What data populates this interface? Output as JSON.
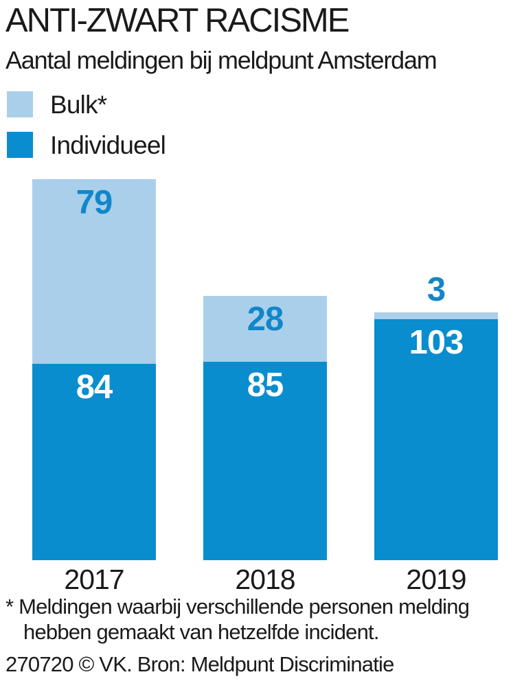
{
  "header": {
    "title": "ANTI-ZWART RACISME",
    "subtitle": "Aantal meldingen bij meldpunt Amsterdam"
  },
  "footnote": "* Meldingen waarbij verschillende personen melding hebben gemaakt van hetzelfde incident.",
  "source": "270720 © VK. Bron: Meldpunt Discriminatie",
  "colors": {
    "bulk": "#a9cfeb",
    "individueel": "#0a8dce",
    "value_label_on_light": "#1286c8",
    "value_label_on_dark": "#ffffff",
    "text": "#1a1a1a",
    "background": "#ffffff"
  },
  "chart_data": {
    "type": "bar",
    "subtype": "stacked-vertical",
    "title": "ANTI-ZWART RACISME",
    "subtitle": "Aantal meldingen bij meldpunt Amsterdam",
    "xlabel": "",
    "ylabel": "",
    "grid": false,
    "legend_position": "top-left",
    "categories": [
      "2017",
      "2018",
      "2019"
    ],
    "series": [
      {
        "name": "Bulk*",
        "key": "bulk",
        "stack_position": "top",
        "color": "#a9cfeb",
        "label_color": "#1286c8",
        "values": [
          79,
          28,
          3
        ]
      },
      {
        "name": "Individueel",
        "key": "individueel",
        "stack_position": "bottom",
        "color": "#0a8dce",
        "label_color": "#ffffff",
        "values": [
          84,
          85,
          103
        ]
      }
    ],
    "totals": [
      163,
      113,
      106
    ]
  }
}
